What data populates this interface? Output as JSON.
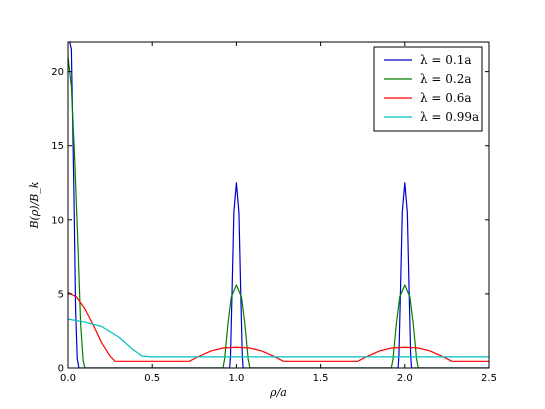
{
  "chart_data": {
    "type": "line",
    "title": "",
    "xlabel": "ρ/a",
    "ylabel": "B(ρ)/B_k",
    "xlim": [
      0.0,
      2.5
    ],
    "ylim": [
      0,
      22
    ],
    "x_ticks": [
      "0.0",
      "0.5",
      "1.0",
      "1.5",
      "2.0",
      "2.5"
    ],
    "y_ticks": [
      "0",
      "5",
      "10",
      "15",
      "20"
    ],
    "grid": false,
    "legend_position": "top-right",
    "series": [
      {
        "name": "λ = 0.1a",
        "color": "#0000cc",
        "points": [
          [
            0.0,
            22
          ],
          [
            0.01,
            22
          ],
          [
            0.02,
            21.5
          ],
          [
            0.035,
            12
          ],
          [
            0.045,
            4
          ],
          [
            0.055,
            0.6
          ],
          [
            0.065,
            0
          ],
          [
            0.96,
            0
          ],
          [
            0.965,
            0.8
          ],
          [
            0.975,
            5.5
          ],
          [
            0.985,
            10.5
          ],
          [
            1.0,
            12.5
          ],
          [
            1.015,
            10.5
          ],
          [
            1.025,
            5.5
          ],
          [
            1.035,
            0.8
          ],
          [
            1.04,
            0
          ],
          [
            1.96,
            0
          ],
          [
            1.965,
            0.8
          ],
          [
            1.975,
            5.5
          ],
          [
            1.985,
            10.5
          ],
          [
            2.0,
            12.5
          ],
          [
            2.015,
            10.5
          ],
          [
            2.025,
            5.5
          ],
          [
            2.035,
            0.8
          ],
          [
            2.04,
            0
          ],
          [
            2.5,
            0
          ]
        ]
      },
      {
        "name": "λ = 0.2a",
        "color": "#008000",
        "points": [
          [
            0.0,
            21
          ],
          [
            0.02,
            19
          ],
          [
            0.04,
            14
          ],
          [
            0.06,
            8
          ],
          [
            0.075,
            3
          ],
          [
            0.09,
            0.5
          ],
          [
            0.1,
            0
          ],
          [
            0.92,
            0
          ],
          [
            0.93,
            0.6
          ],
          [
            0.95,
            3
          ],
          [
            0.97,
            4.8
          ],
          [
            1.0,
            5.6
          ],
          [
            1.03,
            4.8
          ],
          [
            1.05,
            3
          ],
          [
            1.07,
            0.6
          ],
          [
            1.08,
            0
          ],
          [
            1.92,
            0
          ],
          [
            1.93,
            0.6
          ],
          [
            1.95,
            3
          ],
          [
            1.97,
            4.8
          ],
          [
            2.0,
            5.6
          ],
          [
            2.03,
            4.8
          ],
          [
            2.05,
            3
          ],
          [
            2.07,
            0.6
          ],
          [
            2.08,
            0
          ],
          [
            2.5,
            0
          ]
        ]
      },
      {
        "name": "λ = 0.6a",
        "color": "#ff0000",
        "points": [
          [
            0.0,
            5.1
          ],
          [
            0.05,
            4.8
          ],
          [
            0.1,
            4.0
          ],
          [
            0.15,
            2.9
          ],
          [
            0.2,
            1.7
          ],
          [
            0.25,
            0.8
          ],
          [
            0.28,
            0.45
          ],
          [
            0.72,
            0.45
          ],
          [
            0.78,
            0.8
          ],
          [
            0.85,
            1.15
          ],
          [
            0.92,
            1.35
          ],
          [
            1.0,
            1.4
          ],
          [
            1.08,
            1.35
          ],
          [
            1.15,
            1.15
          ],
          [
            1.22,
            0.8
          ],
          [
            1.28,
            0.45
          ],
          [
            1.72,
            0.45
          ],
          [
            1.78,
            0.8
          ],
          [
            1.85,
            1.15
          ],
          [
            1.92,
            1.35
          ],
          [
            2.0,
            1.4
          ],
          [
            2.08,
            1.35
          ],
          [
            2.15,
            1.15
          ],
          [
            2.22,
            0.8
          ],
          [
            2.28,
            0.45
          ],
          [
            2.5,
            0.45
          ]
        ]
      },
      {
        "name": "λ = 0.99a",
        "color": "#00bfbf",
        "points": [
          [
            0.0,
            3.3
          ],
          [
            0.1,
            3.1
          ],
          [
            0.2,
            2.8
          ],
          [
            0.3,
            2.1
          ],
          [
            0.38,
            1.3
          ],
          [
            0.44,
            0.8
          ],
          [
            0.5,
            0.75
          ],
          [
            2.5,
            0.75
          ]
        ]
      }
    ]
  }
}
